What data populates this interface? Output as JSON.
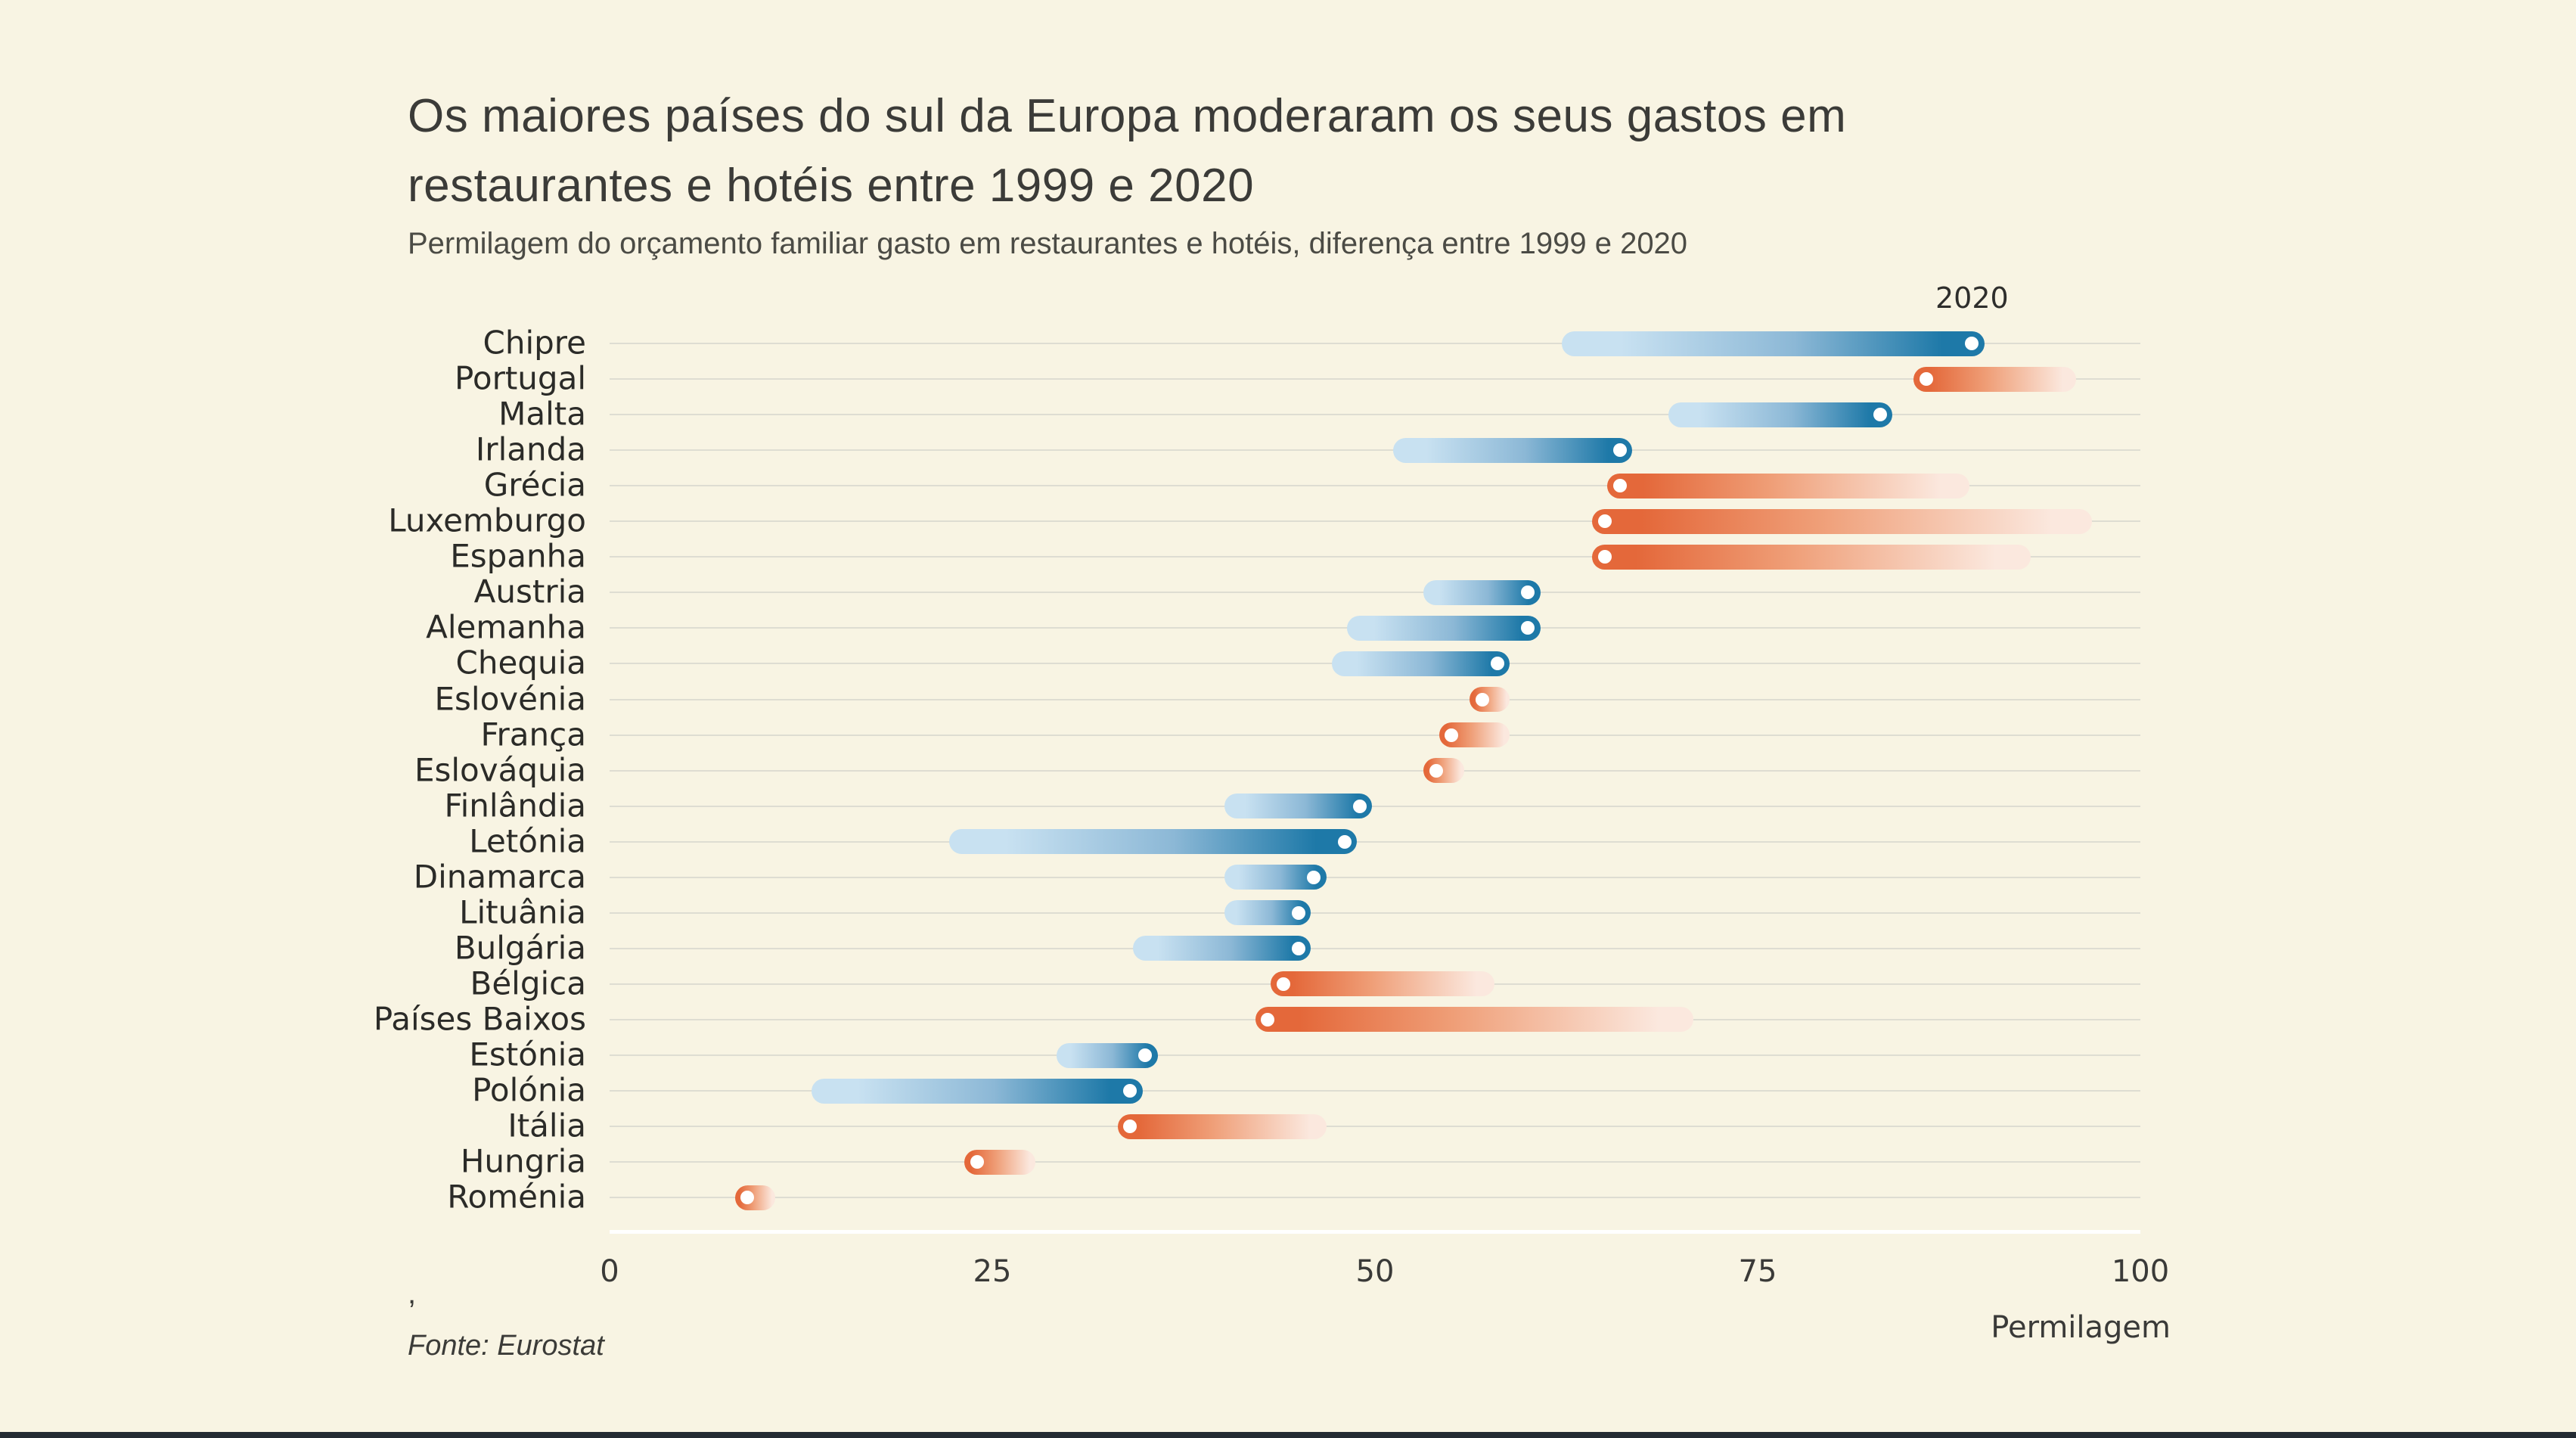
{
  "header": {
    "title_lines": [
      "Os maiores países do sul da Europa moderaram os seus gastos em",
      "restaurantes e hotéis entre 1999 e 2020"
    ],
    "subtitle": "Permilagem do orçamento familiar gasto em restaurantes e hotéis, diferença entre 1999 e 2020"
  },
  "annotation": {
    "marker_year_label": "2020"
  },
  "x_axis": {
    "tick_labels": [
      "0",
      "25",
      "50",
      "75",
      "100"
    ],
    "tick_values": [
      0,
      25,
      50,
      75,
      100
    ],
    "min": 0,
    "max": 100,
    "unit_label": "Permilagem"
  },
  "footer": {
    "note": ",",
    "source": "Fonte: Eurostat"
  },
  "colors": {
    "background": "#f8f4e3",
    "gridline": "#deddd2",
    "axis_line": "#ffffff",
    "text": "#3b3b38",
    "blue_light": "#c8e1f1",
    "blue_mid": "#8cb8d6",
    "blue_dark": "#1e79a8",
    "orange_dark": "#e4683a",
    "orange_mid": "#ef9e77",
    "orange_light": "#fbe8de",
    "dot": "#ffffff"
  },
  "chart_data": {
    "type": "bar",
    "subtype": "comet-change",
    "title": "Os maiores países do sul da Europa moderaram os seus gastos em restaurantes e hotéis entre 1999 e 2020",
    "subtitle": "Permilagem do orçamento familiar gasto em restaurantes e hotéis, diferença entre 1999 e 2020",
    "xlabel": "Permilagem",
    "xlim": [
      0,
      100
    ],
    "xticks": [
      0,
      25,
      50,
      75,
      100
    ],
    "series_years": [
      "1999",
      "2020"
    ],
    "marker_year": "2020",
    "legend_note": "white dot marks 2020 value; blue = increase since 1999, orange = decrease since 1999",
    "rows": [
      {
        "country": "Chipre",
        "value_1999": 63,
        "value_2020": 89,
        "direction": "increase"
      },
      {
        "country": "Portugal",
        "value_1999": 95,
        "value_2020": 86,
        "direction": "decrease"
      },
      {
        "country": "Malta",
        "value_1999": 70,
        "value_2020": 83,
        "direction": "increase"
      },
      {
        "country": "Irlanda",
        "value_1999": 52,
        "value_2020": 66,
        "direction": "increase"
      },
      {
        "country": "Grécia",
        "value_1999": 88,
        "value_2020": 66,
        "direction": "decrease"
      },
      {
        "country": "Luxemburgo",
        "value_1999": 96,
        "value_2020": 65,
        "direction": "decrease"
      },
      {
        "country": "Espanha",
        "value_1999": 92,
        "value_2020": 65,
        "direction": "decrease"
      },
      {
        "country": "Austria",
        "value_1999": 54,
        "value_2020": 60,
        "direction": "increase"
      },
      {
        "country": "Alemanha",
        "value_1999": 49,
        "value_2020": 60,
        "direction": "increase"
      },
      {
        "country": "Chequia",
        "value_1999": 48,
        "value_2020": 58,
        "direction": "increase"
      },
      {
        "country": "Eslovénia",
        "value_1999": 58,
        "value_2020": 57,
        "direction": "decrease"
      },
      {
        "country": "França",
        "value_1999": 58,
        "value_2020": 55,
        "direction": "decrease"
      },
      {
        "country": "Eslováquia",
        "value_1999": 55,
        "value_2020": 54,
        "direction": "decrease"
      },
      {
        "country": "Finlândia",
        "value_1999": 41,
        "value_2020": 49,
        "direction": "increase"
      },
      {
        "country": "Letónia",
        "value_1999": 23,
        "value_2020": 48,
        "direction": "increase"
      },
      {
        "country": "Dinamarca",
        "value_1999": 41,
        "value_2020": 46,
        "direction": "increase"
      },
      {
        "country": "Lituânia",
        "value_1999": 41,
        "value_2020": 45,
        "direction": "increase"
      },
      {
        "country": "Bulgária",
        "value_1999": 35,
        "value_2020": 45,
        "direction": "increase"
      },
      {
        "country": "Bélgica",
        "value_1999": 57,
        "value_2020": 44,
        "direction": "decrease"
      },
      {
        "country": "Países Baixos",
        "value_1999": 70,
        "value_2020": 43,
        "direction": "decrease"
      },
      {
        "country": "Estónia",
        "value_1999": 30,
        "value_2020": 35,
        "direction": "increase"
      },
      {
        "country": "Polónia",
        "value_1999": 14,
        "value_2020": 34,
        "direction": "increase"
      },
      {
        "country": "Itália",
        "value_1999": 46,
        "value_2020": 34,
        "direction": "decrease"
      },
      {
        "country": "Hungria",
        "value_1999": 27,
        "value_2020": 24,
        "direction": "decrease"
      },
      {
        "country": "Roménia",
        "value_1999": 10,
        "value_2020": 9,
        "direction": "decrease"
      }
    ]
  }
}
